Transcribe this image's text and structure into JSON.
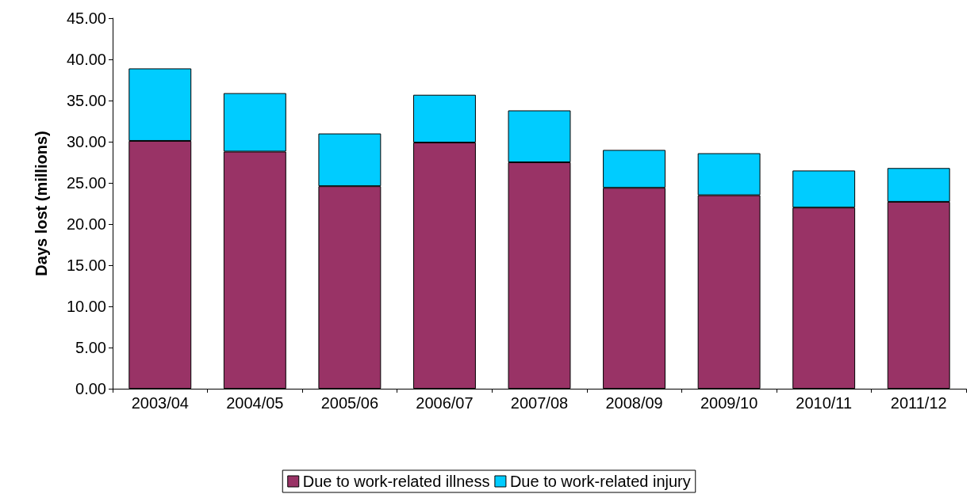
{
  "chart_data": {
    "type": "bar",
    "stacked": true,
    "ylabel": "Days lost (millions)",
    "categories": [
      "2003/04",
      "2004/05",
      "2005/06",
      "2006/07",
      "2007/08",
      "2008/09",
      "2009/10",
      "2010/11",
      "2011/12"
    ],
    "series": [
      {
        "name": "Due to work-related illness",
        "color": "#993366",
        "values": [
          30.1,
          28.8,
          24.6,
          29.9,
          27.5,
          24.4,
          23.5,
          22.0,
          22.7
        ]
      },
      {
        "name": "Due to work-related injury",
        "color": "#00ccff",
        "values": [
          8.8,
          7.1,
          6.4,
          5.8,
          6.3,
          4.6,
          5.1,
          4.5,
          4.1
        ]
      }
    ],
    "ylim": [
      0,
      45
    ],
    "yticks": [
      {
        "value": 0,
        "label": "0.00"
      },
      {
        "value": 5,
        "label": "5.00"
      },
      {
        "value": 10,
        "label": "10.00"
      },
      {
        "value": 15,
        "label": "15.00"
      },
      {
        "value": 20,
        "label": "20.00"
      },
      {
        "value": 25,
        "label": "25.00"
      },
      {
        "value": 30,
        "label": "30.00"
      },
      {
        "value": 35,
        "label": "35.00"
      },
      {
        "value": 40,
        "label": "40.00"
      },
      {
        "value": 45,
        "label": "45.00"
      }
    ],
    "grid": false,
    "legend": "bottom"
  }
}
